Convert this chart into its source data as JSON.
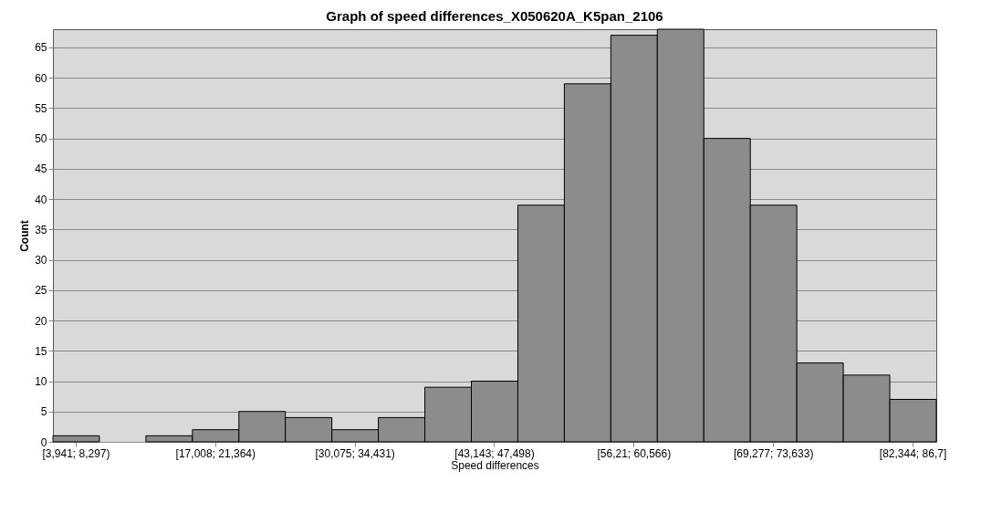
{
  "chart_data": {
    "type": "bar",
    "title": "Graph of speed differences_X050620A_K5pan_2106",
    "xlabel": "Speed differences",
    "ylabel": "Count",
    "categories": [
      "[3,941; 8,297)",
      null,
      null,
      "[17,008; 21,364)",
      null,
      null,
      "[30,075; 34,431)",
      null,
      null,
      "[43,143; 47,498)",
      null,
      null,
      "[56,21; 60,566)",
      null,
      null,
      "[69,277; 73,633)",
      null,
      null,
      "[82,344; 86,7]"
    ],
    "values": [
      1,
      0,
      1,
      2,
      5,
      4,
      2,
      4,
      9,
      10,
      39,
      59,
      67,
      68,
      50,
      39,
      13,
      11,
      7
    ],
    "color": "#8c8c8c",
    "ylim": [
      0,
      68
    ],
    "yticks": [
      0,
      5,
      10,
      15,
      20,
      25,
      30,
      35,
      40,
      45,
      50,
      55,
      60,
      65
    ],
    "grid": "y"
  }
}
